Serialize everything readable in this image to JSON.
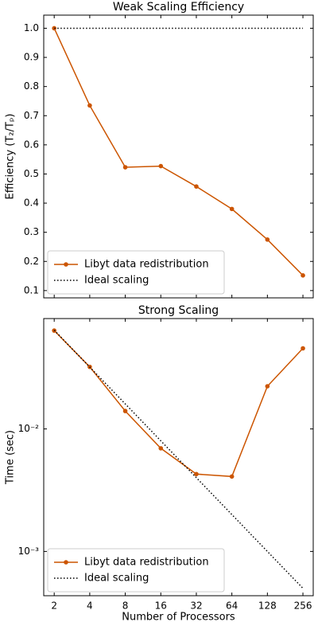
{
  "chart_data": [
    {
      "type": "line",
      "title": "Weak Scaling Efficiency",
      "y_label": "Efficiency (T₂/Tₚ)",
      "x": [
        2,
        4,
        8,
        16,
        32,
        64,
        128,
        256
      ],
      "xlim": [
        1.63,
        313
      ],
      "xlog": true,
      "ylim": [
        0.075,
        1.045
      ],
      "yticks": [
        0.1,
        0.2,
        0.3,
        0.4,
        0.5,
        0.6,
        0.7,
        0.8,
        0.9,
        {
          "value": 1,
          "label": "1.0"
        }
      ],
      "legend": "lower left",
      "series": [
        {
          "name": "Libyt data redistribution",
          "color": "#cc5500",
          "linestyle": "solid",
          "marker": true,
          "values": [
            1.0,
            0.735,
            0.523,
            0.527,
            0.457,
            0.38,
            0.275,
            0.152
          ]
        },
        {
          "name": "Ideal scaling",
          "color": "#000000",
          "linestyle": "dotted",
          "marker": false,
          "values": [
            1,
            1,
            1,
            1,
            1,
            1,
            1,
            1
          ]
        }
      ]
    },
    {
      "type": "line",
      "title": "Strong Scaling",
      "x_label": "Number of Processors",
      "y_label": "Time (sec)",
      "x": [
        2,
        4,
        8,
        16,
        32,
        64,
        128,
        256
      ],
      "xlim": [
        1.63,
        313
      ],
      "xlog": true,
      "xticks": [
        2,
        4,
        8,
        16,
        32,
        64,
        128,
        256
      ],
      "ylim": [
        0.000435,
        0.0796
      ],
      "ylog": true,
      "yticks": [
        {
          "value": 0.01,
          "label": "10⁻²"
        },
        {
          "value": 0.001,
          "label": "10⁻³"
        }
      ],
      "legend": "lower left",
      "series": [
        {
          "name": "Libyt data redistribution",
          "color": "#cc5500",
          "linestyle": "solid",
          "marker": true,
          "values": [
            0.0635,
            0.0321,
            0.014,
            0.00695,
            0.00428,
            0.00409,
            0.0223,
            0.0455
          ]
        },
        {
          "name": "Ideal scaling",
          "color": "#000000",
          "linestyle": "dotted",
          "marker": false,
          "values": [
            0.064,
            0.032,
            0.016,
            0.008,
            0.004,
            0.002,
            0.001,
            0.0005
          ]
        }
      ]
    }
  ]
}
